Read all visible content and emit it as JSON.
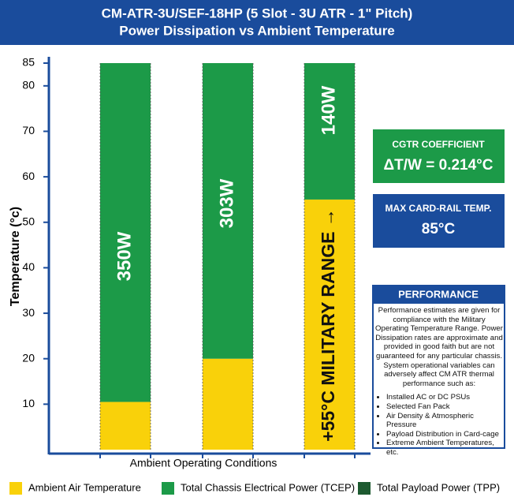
{
  "chart_data": {
    "type": "stacked_bar",
    "title": "CM-ATR-3U/SEF-18HP (5 Slot - 3U ATR - 1\" Pitch)",
    "subtitle": "Power Dissipation vs Ambient Temperature",
    "y_label": "Temperature (°c)",
    "x_label": "Ambient Operating Conditions",
    "categories": [
      null,
      null,
      null
    ],
    "series": [
      {
        "name": "Ambient Air Temperature",
        "color": "#f9d10a",
        "values": [
          10.5,
          20,
          55
        ]
      },
      {
        "name": "Total Chassis Electrical Power (TCEP)",
        "color": "#1c9a48",
        "values": [
          74.5,
          65,
          30
        ]
      },
      {
        "name": "Total Payload Power (TPP)",
        "color": "#1d5a30",
        "values": [
          0,
          0,
          0
        ]
      }
    ],
    "bar_annotations": [
      "350W",
      "303W",
      "140W"
    ],
    "range_annotation": "+55°C MILITARY RANGE →",
    "ylim": [
      0,
      85
    ],
    "yticks": [
      10,
      20,
      30,
      40,
      50,
      60,
      70,
      80,
      85
    ],
    "panels": {
      "coefficient": {
        "title": "CGTR COEFFICIENT",
        "value": "ΔT/W = 0.214°C"
      },
      "max_temp": {
        "title": "MAX CARD-RAIL TEMP.",
        "value": "85°C"
      },
      "performance": {
        "title": "PERFORMANCE",
        "text": "Performance estimates are given for compliance with the Military Operating Temperature Range. Power Dissipation rates are approximate and provided in good faith but are not guaranteed for any particular chassis. System operational variables can adversely affect CM ATR thermal performance such as:",
        "bullets": [
          "Installed AC or DC PSUs",
          "Selected Fan Pack",
          "Air Density & Atmospheric Pressure",
          "Payload Distribution in Card-cage",
          "Extreme Ambient Temperatures, etc."
        ]
      }
    }
  }
}
